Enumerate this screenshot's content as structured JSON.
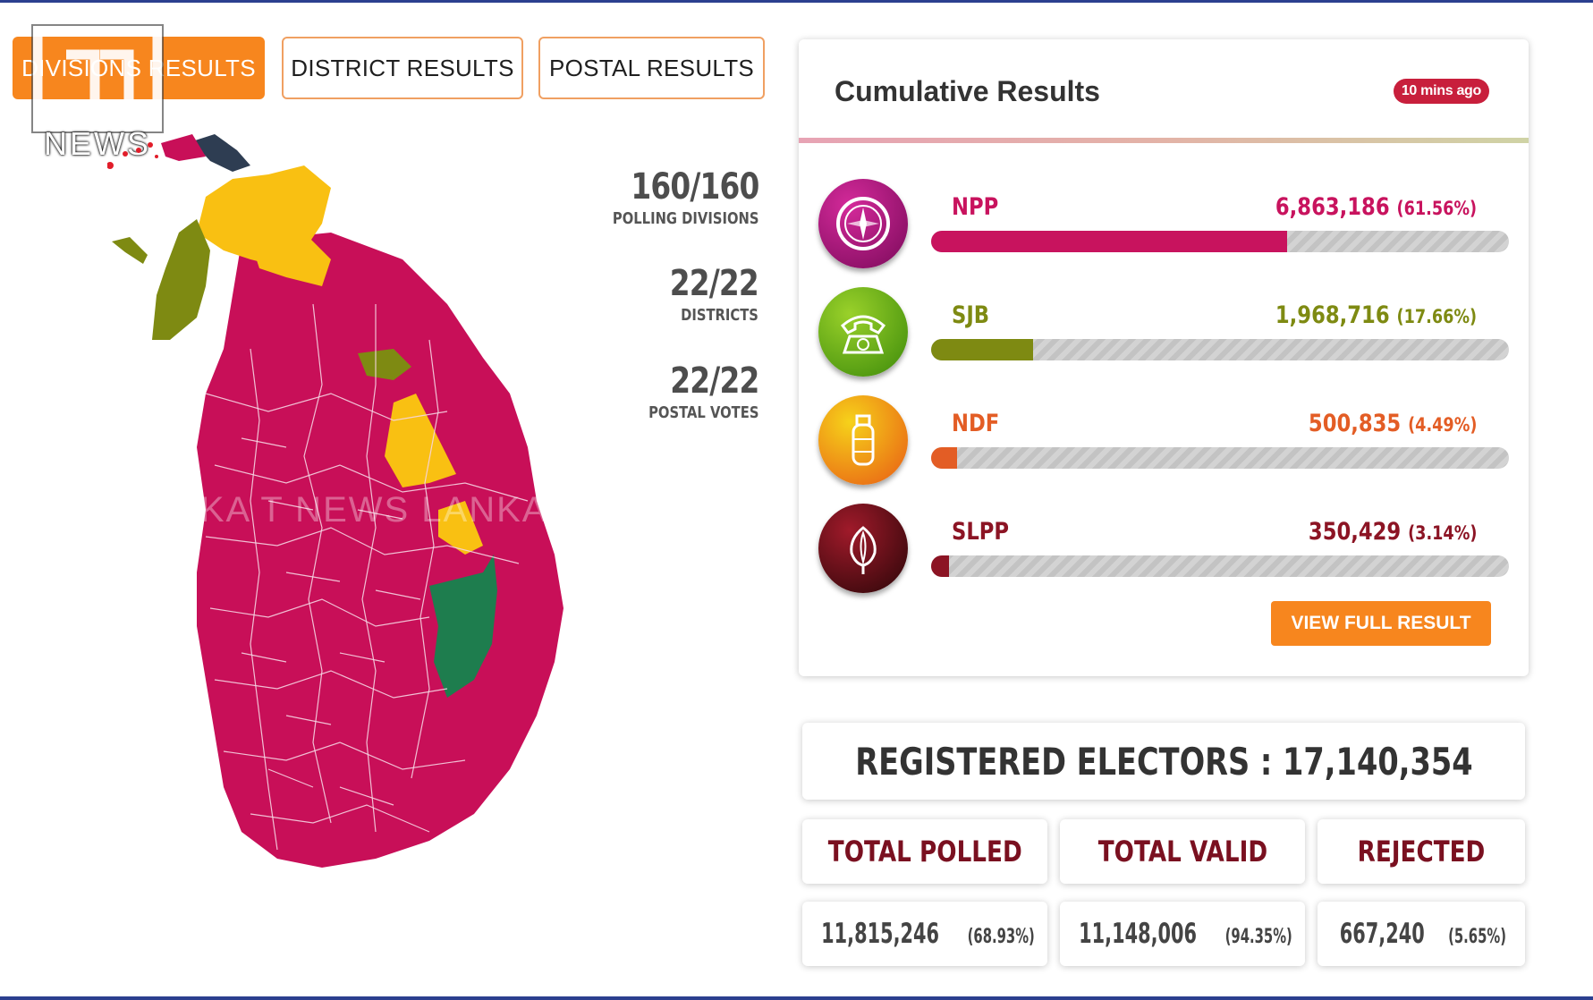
{
  "tabs": [
    {
      "label": "DIVISIONS RESULTS",
      "active": true
    },
    {
      "label": "DISTRICT RESULTS",
      "active": false
    },
    {
      "label": "POSTAL RESULTS",
      "active": false
    }
  ],
  "logo": {
    "text": "NEWS"
  },
  "map": {
    "watermark": "LANKA T NEWS   LANKA T NEWS"
  },
  "stats": [
    {
      "value": "160/160",
      "label": "POLLING DIVISIONS"
    },
    {
      "value": "22/22",
      "label": "DISTRICTS"
    },
    {
      "value": "22/22",
      "label": "POSTAL VOTES"
    }
  ],
  "cumulative": {
    "title": "Cumulative Results",
    "badge": "10 mins ago",
    "parties": [
      {
        "name": "NPP",
        "votes": "6,863,186",
        "percent": "(61.56%)",
        "share": 61.56,
        "color": "#c8135e",
        "icon": "compass-icon"
      },
      {
        "name": "SJB",
        "votes": "1,968,716",
        "percent": "(17.66%)",
        "share": 17.66,
        "color": "#7e8a12",
        "icon": "telephone-icon"
      },
      {
        "name": "NDF",
        "votes": "500,835",
        "percent": "(4.49%)",
        "share": 4.49,
        "color": "#e35d25",
        "icon": "gas-cylinder-icon"
      },
      {
        "name": "SLPP",
        "votes": "350,429",
        "percent": "(3.14%)",
        "share": 3.14,
        "color": "#8c1424",
        "icon": "lotus-bud-icon"
      }
    ],
    "view_button": "VIEW FULL RESULT"
  },
  "electors": {
    "registered": "REGISTERED ELECTORS : 17,140,354",
    "columns": [
      {
        "header": "TOTAL POLLED",
        "value": "11,815,246",
        "percent": "(68.93%)"
      },
      {
        "header": "TOTAL VALID",
        "value": "11,148,006",
        "percent": "(94.35%)"
      },
      {
        "header": "REJECTED",
        "value": "667,240",
        "percent": "(5.65%)"
      }
    ]
  }
}
